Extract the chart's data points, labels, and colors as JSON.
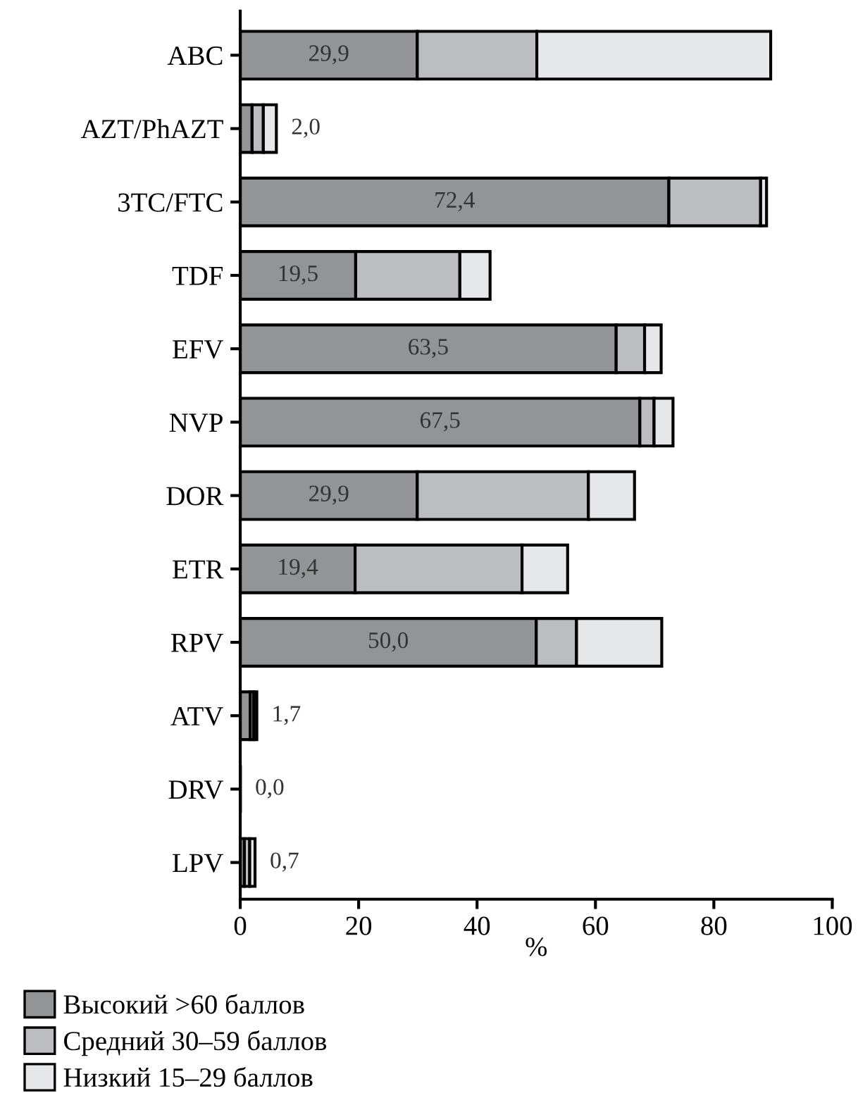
{
  "chart_data": {
    "type": "bar",
    "orientation": "horizontal",
    "stacked": true,
    "xlabel": "%",
    "categories": [
      "ABC",
      "AZT/PhAZT",
      "3TC/FTC",
      "TDF",
      "EFV",
      "NVP",
      "DOR",
      "ETR",
      "RPV",
      "ATV",
      "DRV",
      "LPV"
    ],
    "series": [
      {
        "name": "Высокий >60 баллов",
        "color": "#939496",
        "values": [
          29.9,
          2.0,
          72.4,
          19.5,
          63.5,
          67.5,
          29.9,
          19.4,
          50.0,
          1.7,
          0.0,
          0.7
        ],
        "value_labels": [
          "29,9",
          "2,0",
          "72,4",
          "19,5",
          "63,5",
          "67,5",
          "29,9",
          "19,4",
          "50,0",
          "1,7",
          "0,0",
          "0,7"
        ]
      },
      {
        "name": "Средний 30–59 баллов",
        "color": "#bcbdc0",
        "values": [
          20.2,
          1.9,
          15.5,
          17.6,
          4.8,
          2.4,
          28.9,
          28.2,
          6.8,
          0.6,
          null,
          0.9
        ]
      },
      {
        "name": "Низкий 15–29 баллов",
        "color": "#e6e7e8",
        "values": [
          39.5,
          2.2,
          1.0,
          5.1,
          2.8,
          3.2,
          7.8,
          7.7,
          14.4,
          0.5,
          null,
          0.9
        ]
      }
    ],
    "xlim": [
      0,
      100
    ],
    "xticks": [
      0,
      20,
      40,
      60,
      80,
      100
    ],
    "grid": false,
    "legend": "bottom left"
  }
}
